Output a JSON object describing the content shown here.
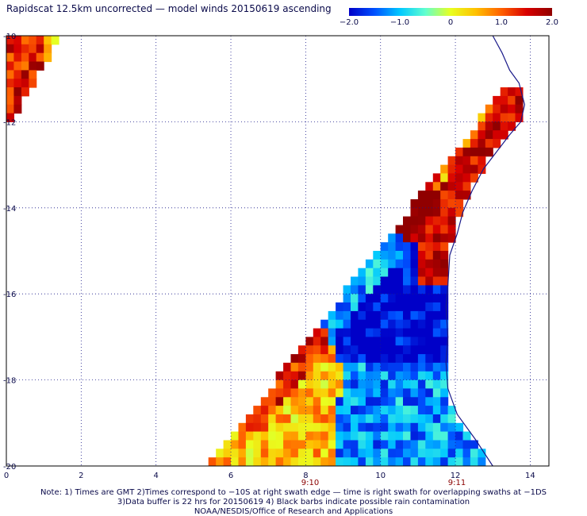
{
  "title": "Rapidscat 12.5km uncorrected — model winds 20150619 ascending",
  "colorbar": {
    "ticks": [
      "−2.0",
      "−1.0",
      "0",
      "1.0",
      "2.0"
    ],
    "colors": [
      "#0000c8",
      "#0050ff",
      "#00c8ff",
      "#60ffd0",
      "#e8ff20",
      "#ffc000",
      "#ff6000",
      "#d80000",
      "#900000"
    ]
  },
  "x_ticks": [
    "0",
    "2",
    "4",
    "6",
    "8",
    "10",
    "12",
    "14"
  ],
  "y_ticks": [
    "-10",
    "-12",
    "-14",
    "-16",
    "-18",
    "-20"
  ],
  "time_labels": [
    "9:10",
    "9:11"
  ],
  "notes": [
    "Note: 1) Times are GMT 2)Times correspond to −10S at right swath edge — time is right swath for overlapping swaths at −1DS",
    "3)Data buffer is 22 hrs for 20150619 4) Black barbs indicate possible rain contamination",
    "NOAA/NESDIS/Office of Research and Applications"
  ],
  "chart_data": {
    "type": "heatmap",
    "variable": "wind speed difference (uncorrected minus model)",
    "value_range": [
      -2.0,
      2.0
    ],
    "x_range": [
      0,
      14.5
    ],
    "y_range": [
      -20,
      -10
    ],
    "regions": [
      {
        "lon": [
          0,
          1.5
        ],
        "lat": [
          -12,
          -10
        ],
        "mean_value": 1.4
      },
      {
        "lon": [
          9.5,
          11.5
        ],
        "lat": [
          -17.5,
          -15.5
        ],
        "mean_value": -2.0
      },
      {
        "lon": [
          10.5,
          13.5
        ],
        "lat": [
          -15.5,
          -11.5
        ],
        "mean_value": 1.6
      },
      {
        "lon": [
          5.5,
          9.0
        ],
        "lat": [
          -20,
          -17.0
        ],
        "mean_value": 0.5
      },
      {
        "lon": [
          9.0,
          12.0
        ],
        "lat": [
          -20,
          -17.5
        ],
        "mean_value": -1.2
      }
    ]
  }
}
